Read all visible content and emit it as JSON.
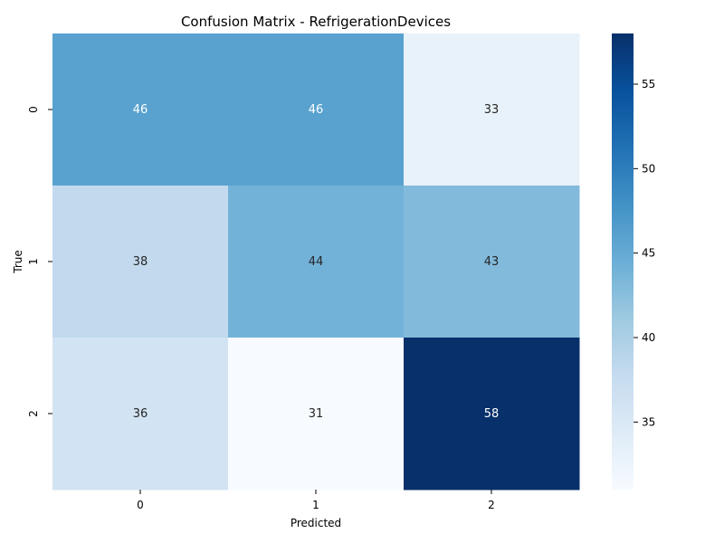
{
  "chart_data": {
    "type": "heatmap",
    "title": "Confusion Matrix - RefrigerationDevices",
    "xlabel": "Predicted",
    "ylabel": "True",
    "x_categories": [
      "0",
      "1",
      "2"
    ],
    "y_categories": [
      "0",
      "1",
      "2"
    ],
    "values": [
      [
        46,
        46,
        33
      ],
      [
        38,
        44,
        43
      ],
      [
        36,
        31,
        58
      ]
    ],
    "colormap": "Blues",
    "color_range": [
      31,
      58
    ],
    "colorbar_ticks": [
      35,
      40,
      45,
      50,
      55
    ],
    "colorbar_tick_labels": [
      "35",
      "40",
      "45",
      "50",
      "55"
    ],
    "annotation_colors": {
      "dark_text": "#262626",
      "light_text": "#ffffff"
    }
  }
}
